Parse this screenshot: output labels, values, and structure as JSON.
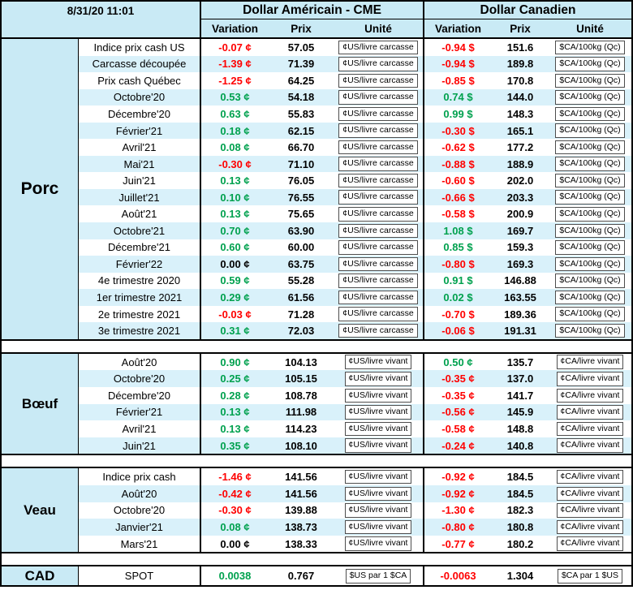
{
  "header": {
    "timestamp": "8/31/20 11:01",
    "us_title": "Dollar Américain - CME",
    "ca_title": "Dollar Canadien",
    "col_variation": "Variation",
    "col_prix": "Prix",
    "col_unite": "Unité"
  },
  "colors": {
    "positive": "#00A14E",
    "negative": "#FF0000",
    "neutral": "#000000",
    "header_bg": "#C9EAF5",
    "stripe_bg": "#D9F1FA"
  },
  "sections": [
    {
      "id": "porc",
      "label": "Porc",
      "rows": [
        {
          "name": "Indice prix cash US",
          "us_var": "-0.07 ¢",
          "us_prix": "57.05",
          "us_unit": "¢US/livre carcasse",
          "ca_var": "-0.94 $",
          "ca_prix": "151.6",
          "ca_unit": "$CA/100kg (Qc)"
        },
        {
          "name": "Carcasse découpée",
          "us_var": "-1.39 ¢",
          "us_prix": "71.39",
          "us_unit": "¢US/livre carcasse",
          "ca_var": "-0.94 $",
          "ca_prix": "189.8",
          "ca_unit": "$CA/100kg (Qc)"
        },
        {
          "name": "Prix cash Québec",
          "us_var": "-1.25 ¢",
          "us_prix": "64.25",
          "us_unit": "¢US/livre carcasse",
          "ca_var": "-0.85 $",
          "ca_prix": "170.8",
          "ca_unit": "$CA/100kg (Qc)"
        },
        {
          "name": "Octobre'20",
          "us_var": "0.53 ¢",
          "us_prix": "54.18",
          "us_unit": "¢US/livre carcasse",
          "ca_var": "0.74 $",
          "ca_prix": "144.0",
          "ca_unit": "$CA/100kg (Qc)"
        },
        {
          "name": "Décembre'20",
          "us_var": "0.63 ¢",
          "us_prix": "55.83",
          "us_unit": "¢US/livre carcasse",
          "ca_var": "0.99 $",
          "ca_prix": "148.3",
          "ca_unit": "$CA/100kg (Qc)"
        },
        {
          "name": "Février'21",
          "us_var": "0.18 ¢",
          "us_prix": "62.15",
          "us_unit": "¢US/livre carcasse",
          "ca_var": "-0.30 $",
          "ca_prix": "165.1",
          "ca_unit": "$CA/100kg (Qc)"
        },
        {
          "name": "Avril'21",
          "us_var": "0.08 ¢",
          "us_prix": "66.70",
          "us_unit": "¢US/livre carcasse",
          "ca_var": "-0.62 $",
          "ca_prix": "177.2",
          "ca_unit": "$CA/100kg (Qc)"
        },
        {
          "name": "Mai'21",
          "us_var": "-0.30 ¢",
          "us_prix": "71.10",
          "us_unit": "¢US/livre carcasse",
          "ca_var": "-0.88 $",
          "ca_prix": "188.9",
          "ca_unit": "$CA/100kg (Qc)"
        },
        {
          "name": "Juin'21",
          "us_var": "0.13 ¢",
          "us_prix": "76.05",
          "us_unit": "¢US/livre carcasse",
          "ca_var": "-0.60 $",
          "ca_prix": "202.0",
          "ca_unit": "$CA/100kg (Qc)"
        },
        {
          "name": "Juillet'21",
          "us_var": "0.10 ¢",
          "us_prix": "76.55",
          "us_unit": "¢US/livre carcasse",
          "ca_var": "-0.66 $",
          "ca_prix": "203.3",
          "ca_unit": "$CA/100kg (Qc)"
        },
        {
          "name": "Août'21",
          "us_var": "0.13 ¢",
          "us_prix": "75.65",
          "us_unit": "¢US/livre carcasse",
          "ca_var": "-0.58 $",
          "ca_prix": "200.9",
          "ca_unit": "$CA/100kg (Qc)"
        },
        {
          "name": "Octobre'21",
          "us_var": "0.70 ¢",
          "us_prix": "63.90",
          "us_unit": "¢US/livre carcasse",
          "ca_var": "1.08 $",
          "ca_prix": "169.7",
          "ca_unit": "$CA/100kg (Qc)"
        },
        {
          "name": "Décembre'21",
          "us_var": "0.60 ¢",
          "us_prix": "60.00",
          "us_unit": "¢US/livre carcasse",
          "ca_var": "0.85 $",
          "ca_prix": "159.3",
          "ca_unit": "$CA/100kg (Qc)"
        },
        {
          "name": "Février'22",
          "us_var": "0.00 ¢",
          "us_prix": "63.75",
          "us_unit": "¢US/livre carcasse",
          "ca_var": "-0.80 $",
          "ca_prix": "169.3",
          "ca_unit": "$CA/100kg (Qc)"
        },
        {
          "name": "4e trimestre 2020",
          "us_var": "0.59 ¢",
          "us_prix": "55.28",
          "us_unit": "¢US/livre carcasse",
          "ca_var": "0.91 $",
          "ca_prix": "146.88",
          "ca_unit": "$CA/100kg (Qc)"
        },
        {
          "name": "1er trimestre 2021",
          "us_var": "0.29 ¢",
          "us_prix": "61.56",
          "us_unit": "¢US/livre carcasse",
          "ca_var": "0.02 $",
          "ca_prix": "163.55",
          "ca_unit": "$CA/100kg (Qc)"
        },
        {
          "name": "2e trimestre 2021",
          "us_var": "-0.03 ¢",
          "us_prix": "71.28",
          "us_unit": "¢US/livre carcasse",
          "ca_var": "-0.70 $",
          "ca_prix": "189.36",
          "ca_unit": "$CA/100kg (Qc)"
        },
        {
          "name": "3e trimestre 2021",
          "us_var": "0.31 ¢",
          "us_prix": "72.03",
          "us_unit": "¢US/livre carcasse",
          "ca_var": "-0.06 $",
          "ca_prix": "191.31",
          "ca_unit": "$CA/100kg (Qc)"
        }
      ]
    },
    {
      "id": "boeuf",
      "label": "Bœuf",
      "rows": [
        {
          "name": "Août'20",
          "us_var": "0.90 ¢",
          "us_prix": "104.13",
          "us_unit": "¢US/livre vivant",
          "ca_var": "0.50 ¢",
          "ca_prix": "135.7",
          "ca_unit": "¢CA/livre vivant"
        },
        {
          "name": "Octobre'20",
          "us_var": "0.25 ¢",
          "us_prix": "105.15",
          "us_unit": "¢US/livre vivant",
          "ca_var": "-0.35 ¢",
          "ca_prix": "137.0",
          "ca_unit": "¢CA/livre vivant"
        },
        {
          "name": "Décembre'20",
          "us_var": "0.28 ¢",
          "us_prix": "108.78",
          "us_unit": "¢US/livre vivant",
          "ca_var": "-0.35 ¢",
          "ca_prix": "141.7",
          "ca_unit": "¢CA/livre vivant"
        },
        {
          "name": "Février'21",
          "us_var": "0.13 ¢",
          "us_prix": "111.98",
          "us_unit": "¢US/livre vivant",
          "ca_var": "-0.56 ¢",
          "ca_prix": "145.9",
          "ca_unit": "¢CA/livre vivant"
        },
        {
          "name": "Avril'21",
          "us_var": "0.13 ¢",
          "us_prix": "114.23",
          "us_unit": "¢US/livre vivant",
          "ca_var": "-0.58 ¢",
          "ca_prix": "148.8",
          "ca_unit": "¢CA/livre vivant"
        },
        {
          "name": "Juin'21",
          "us_var": "0.35 ¢",
          "us_prix": "108.10",
          "us_unit": "¢US/livre vivant",
          "ca_var": "-0.24 ¢",
          "ca_prix": "140.8",
          "ca_unit": "¢CA/livre vivant"
        }
      ]
    },
    {
      "id": "veau",
      "label": "Veau",
      "rows": [
        {
          "name": "Indice prix cash",
          "us_var": "-1.46 ¢",
          "us_prix": "141.56",
          "us_unit": "¢US/livre vivant",
          "ca_var": "-0.92 ¢",
          "ca_prix": "184.5",
          "ca_unit": "¢CA/livre vivant"
        },
        {
          "name": "Août'20",
          "us_var": "-0.42 ¢",
          "us_prix": "141.56",
          "us_unit": "¢US/livre vivant",
          "ca_var": "-0.92 ¢",
          "ca_prix": "184.5",
          "ca_unit": "¢CA/livre vivant"
        },
        {
          "name": "Octobre'20",
          "us_var": "-0.30 ¢",
          "us_prix": "139.88",
          "us_unit": "¢US/livre vivant",
          "ca_var": "-1.30 ¢",
          "ca_prix": "182.3",
          "ca_unit": "¢CA/livre vivant"
        },
        {
          "name": "Janvier'21",
          "us_var": "0.08 ¢",
          "us_prix": "138.73",
          "us_unit": "¢US/livre vivant",
          "ca_var": "-0.80 ¢",
          "ca_prix": "180.8",
          "ca_unit": "¢CA/livre vivant"
        },
        {
          "name": "Mars'21",
          "us_var": "0.00 ¢",
          "us_prix": "138.33",
          "us_unit": "¢US/livre vivant",
          "ca_var": "-0.77 ¢",
          "ca_prix": "180.2",
          "ca_unit": "¢CA/livre vivant"
        }
      ]
    },
    {
      "id": "cad",
      "label": "CAD",
      "rows": [
        {
          "name": "SPOT",
          "us_var": "0.0038",
          "us_prix": "0.767",
          "us_unit": "$US par 1 $CA",
          "ca_var": "-0.0063",
          "ca_prix": "1.304",
          "ca_unit": "$CA par 1 $US"
        }
      ]
    }
  ]
}
